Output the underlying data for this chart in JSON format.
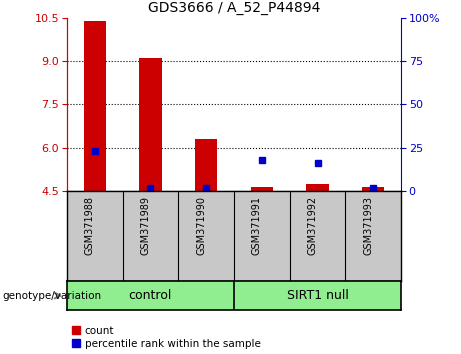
{
  "title": "GDS3666 / A_52_P44894",
  "samples": [
    "GSM371988",
    "GSM371989",
    "GSM371990",
    "GSM371991",
    "GSM371992",
    "GSM371993"
  ],
  "red_values": [
    10.4,
    9.12,
    6.3,
    4.65,
    4.75,
    4.65
  ],
  "blue_values": [
    5.9,
    4.6,
    4.62,
    5.58,
    5.48,
    4.62
  ],
  "ymin": 4.5,
  "ymax": 10.5,
  "yticks_left": [
    4.5,
    6.0,
    7.5,
    9.0,
    10.5
  ],
  "yticks_right": [
    0,
    25,
    50,
    75,
    100
  ],
  "legend_items": [
    {
      "label": "count",
      "color": "#CC0000"
    },
    {
      "label": "percentile rank within the sample",
      "color": "#0000CC"
    }
  ],
  "bar_color": "#CC0000",
  "blue_color": "#0000CC",
  "plot_bg": "#FFFFFF",
  "tick_bg": "#C8C8C8",
  "group_bg": "#90EE90",
  "bar_width": 0.4,
  "blue_marker_size": 5,
  "left_tick_color": "#CC0000",
  "right_tick_color": "#0000CC",
  "control_label": "control",
  "null_label": "SIRT1 null",
  "genotype_label": "genotype/variation"
}
